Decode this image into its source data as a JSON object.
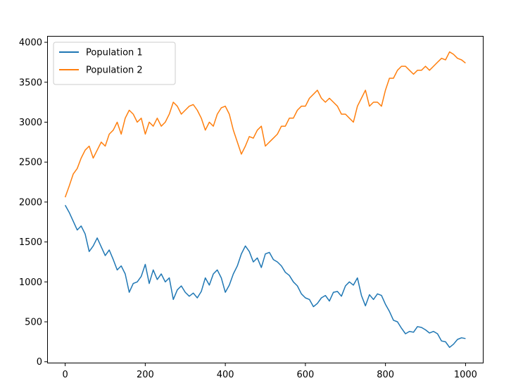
{
  "chart_data": {
    "type": "line",
    "title": "",
    "xlabel": "",
    "ylabel": "",
    "xlim": [
      -45,
      1045
    ],
    "ylim": [
      -20,
      4080
    ],
    "xticks": [
      0,
      200,
      400,
      600,
      800,
      1000
    ],
    "yticks": [
      0,
      500,
      1000,
      1500,
      2000,
      2500,
      3000,
      3500,
      4000
    ],
    "xtick_labels": [
      "0",
      "200",
      "400",
      "600",
      "800",
      "1000"
    ],
    "ytick_labels": [
      "0",
      "500",
      "1000",
      "1500",
      "2000",
      "2500",
      "3000",
      "3500",
      "4000"
    ],
    "grid": false,
    "legend_position": "top-left",
    "series": [
      {
        "name": "Population 1",
        "color": "#1f77b4",
        "x": [
          0,
          10,
          20,
          30,
          40,
          50,
          60,
          70,
          80,
          90,
          100,
          110,
          120,
          130,
          140,
          150,
          160,
          170,
          180,
          190,
          200,
          210,
          220,
          230,
          240,
          250,
          260,
          270,
          280,
          290,
          300,
          310,
          320,
          330,
          340,
          350,
          360,
          370,
          380,
          390,
          400,
          410,
          420,
          430,
          440,
          450,
          460,
          470,
          480,
          490,
          500,
          510,
          520,
          530,
          540,
          550,
          560,
          570,
          580,
          590,
          600,
          610,
          620,
          630,
          640,
          650,
          660,
          670,
          680,
          690,
          700,
          710,
          720,
          730,
          740,
          750,
          760,
          770,
          780,
          790,
          800,
          810,
          820,
          830,
          840,
          850,
          860,
          870,
          880,
          890,
          900,
          910,
          920,
          930,
          940,
          950,
          960,
          970,
          980,
          990,
          1000
        ],
        "values": [
          1960,
          1870,
          1760,
          1650,
          1700,
          1600,
          1380,
          1450,
          1550,
          1440,
          1330,
          1400,
          1280,
          1150,
          1200,
          1100,
          870,
          980,
          1000,
          1070,
          1220,
          980,
          1150,
          1030,
          1100,
          1000,
          1050,
          780,
          900,
          950,
          870,
          820,
          860,
          800,
          880,
          1050,
          960,
          1100,
          1150,
          1050,
          870,
          960,
          1100,
          1200,
          1350,
          1450,
          1380,
          1250,
          1300,
          1180,
          1350,
          1370,
          1280,
          1250,
          1200,
          1120,
          1080,
          1000,
          950,
          850,
          800,
          780,
          690,
          730,
          800,
          830,
          760,
          870,
          880,
          820,
          950,
          1000,
          960,
          1050,
          830,
          700,
          840,
          780,
          850,
          830,
          720,
          630,
          520,
          500,
          420,
          350,
          380,
          370,
          440,
          430,
          400,
          360,
          380,
          350,
          260,
          250,
          180,
          220,
          280,
          300,
          290
        ]
      },
      {
        "name": "Population 2",
        "color": "#ff7f0e",
        "x": [
          0,
          10,
          20,
          30,
          40,
          50,
          60,
          70,
          80,
          90,
          100,
          110,
          120,
          130,
          140,
          150,
          160,
          170,
          180,
          190,
          200,
          210,
          220,
          230,
          240,
          250,
          260,
          270,
          280,
          290,
          300,
          310,
          320,
          330,
          340,
          350,
          360,
          370,
          380,
          390,
          400,
          410,
          420,
          430,
          440,
          450,
          460,
          470,
          480,
          490,
          500,
          510,
          520,
          530,
          540,
          550,
          560,
          570,
          580,
          590,
          600,
          610,
          620,
          630,
          640,
          650,
          660,
          670,
          680,
          690,
          700,
          710,
          720,
          730,
          740,
          750,
          760,
          770,
          780,
          790,
          800,
          810,
          820,
          830,
          840,
          850,
          860,
          870,
          880,
          890,
          900,
          910,
          920,
          930,
          940,
          950,
          960,
          970,
          980,
          990,
          1000
        ],
        "values": [
          2060,
          2200,
          2350,
          2420,
          2550,
          2650,
          2700,
          2550,
          2650,
          2750,
          2700,
          2850,
          2900,
          3000,
          2850,
          3050,
          3150,
          3100,
          3000,
          3050,
          2850,
          3000,
          2950,
          3050,
          2950,
          3000,
          3100,
          3250,
          3200,
          3100,
          3150,
          3200,
          3220,
          3150,
          3050,
          2900,
          3000,
          2950,
          3100,
          3180,
          3200,
          3100,
          2900,
          2750,
          2600,
          2700,
          2820,
          2800,
          2900,
          2950,
          2700,
          2750,
          2800,
          2850,
          2950,
          2950,
          3050,
          3050,
          3150,
          3200,
          3200,
          3300,
          3350,
          3400,
          3300,
          3250,
          3300,
          3250,
          3200,
          3100,
          3100,
          3050,
          3000,
          3200,
          3300,
          3400,
          3200,
          3250,
          3250,
          3200,
          3400,
          3550,
          3550,
          3650,
          3700,
          3700,
          3650,
          3600,
          3650,
          3650,
          3700,
          3650,
          3700,
          3750,
          3800,
          3780,
          3880,
          3850,
          3800,
          3780,
          3740
        ]
      }
    ]
  }
}
